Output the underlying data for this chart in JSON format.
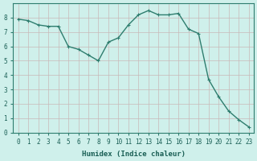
{
  "x": [
    0,
    1,
    2,
    3,
    4,
    5,
    6,
    7,
    8,
    9,
    10,
    11,
    12,
    13,
    14,
    15,
    16,
    17,
    18,
    19,
    20,
    21,
    22,
    23
  ],
  "y": [
    7.9,
    7.8,
    7.5,
    7.4,
    7.4,
    6.0,
    5.8,
    5.4,
    5.0,
    6.3,
    6.6,
    7.5,
    8.2,
    8.5,
    8.2,
    8.2,
    8.3,
    7.2,
    6.9,
    3.7,
    2.5,
    1.5,
    0.9,
    0.4
  ],
  "line_color": "#2e7d6e",
  "marker_color": "#2e7d6e",
  "bg_color": "#cff0eb",
  "grid_color": "#c8b8b8",
  "xlabel": "Humidex (Indice chaleur)",
  "xlabel_fontsize": 6.5,
  "tick_fontsize": 5.5,
  "xlim": [
    -0.5,
    23.5
  ],
  "ylim": [
    0,
    9
  ],
  "yticks": [
    0,
    1,
    2,
    3,
    4,
    5,
    6,
    7,
    8
  ],
  "xticks": [
    0,
    1,
    2,
    3,
    4,
    5,
    6,
    7,
    8,
    9,
    10,
    11,
    12,
    13,
    14,
    15,
    16,
    17,
    18,
    19,
    20,
    21,
    22,
    23
  ],
  "marker_size": 2.5,
  "line_width": 1.0
}
